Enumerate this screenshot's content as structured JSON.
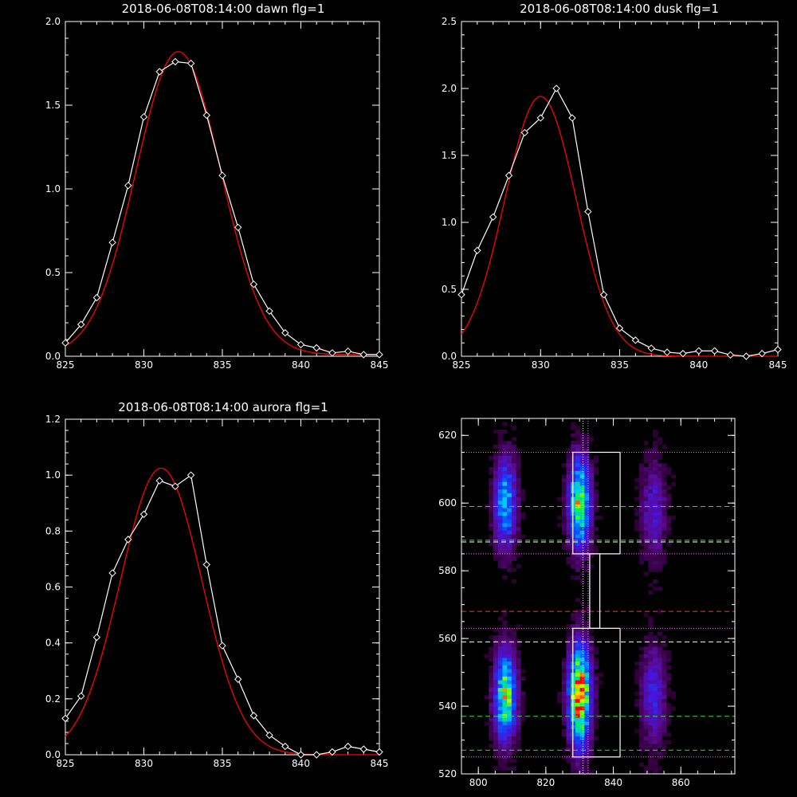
{
  "chart_data": [
    {
      "type": "line",
      "title": "2018-06-08T08:14:00 dawn flg=1",
      "xlim": [
        825,
        845
      ],
      "ylim": [
        0,
        2.0
      ],
      "xticks": [
        825,
        830,
        835,
        840,
        845
      ],
      "yticks": [
        0,
        0.5,
        1.0,
        1.5,
        2.0
      ],
      "ytick_labels": [
        "0.0",
        "0.5",
        "1.0",
        "1.5",
        "2.0"
      ],
      "series": [
        {
          "style": "data-diamonds",
          "color": "#ffffff",
          "x": [
            825,
            826,
            827,
            828,
            829,
            830,
            831,
            832,
            833,
            834,
            835,
            836,
            837,
            838,
            839,
            840,
            841,
            842,
            843,
            844,
            845
          ],
          "y": [
            0.08,
            0.19,
            0.35,
            0.68,
            1.02,
            1.43,
            1.7,
            1.76,
            1.75,
            1.44,
            1.08,
            0.77,
            0.43,
            0.27,
            0.14,
            0.07,
            0.05,
            0.02,
            0.03,
            0.01,
            0.01
          ]
        },
        {
          "style": "fit",
          "color": "#ff0000",
          "amplitude": 1.81,
          "center": 832.2,
          "sigma": 2.7,
          "offset": 0.01
        }
      ]
    },
    {
      "type": "line",
      "title": "2018-06-08T08:14:00 dusk flg=1",
      "xlim": [
        825,
        845
      ],
      "ylim": [
        0,
        2.5
      ],
      "xticks": [
        825,
        830,
        835,
        840,
        845
      ],
      "yticks": [
        0,
        0.5,
        1.0,
        1.5,
        2.0,
        2.5
      ],
      "ytick_labels": [
        "0.0",
        "0.5",
        "1.0",
        "1.5",
        "2.0",
        "2.5"
      ],
      "series": [
        {
          "style": "data-diamonds",
          "color": "#ffffff",
          "x": [
            825,
            826,
            827,
            828,
            829,
            830,
            831,
            832,
            833,
            834,
            835,
            836,
            837,
            838,
            839,
            840,
            841,
            842,
            843,
            844,
            845
          ],
          "y": [
            0.46,
            0.79,
            1.04,
            1.35,
            1.67,
            1.78,
            2.0,
            1.78,
            1.08,
            0.46,
            0.21,
            0.12,
            0.06,
            0.03,
            0.02,
            0.04,
            0.04,
            0.01,
            0.0,
            0.02,
            0.05
          ]
        },
        {
          "style": "fit",
          "color": "#ff0000",
          "amplitude": 1.94,
          "center": 830.0,
          "sigma": 2.25,
          "offset": 0.0
        }
      ]
    },
    {
      "type": "line",
      "title": "2018-06-08T08:14:00 aurora flg=1",
      "xlim": [
        825,
        845
      ],
      "ylim": [
        0,
        1.2
      ],
      "xticks": [
        825,
        830,
        835,
        840,
        845
      ],
      "yticks": [
        0,
        0.2,
        0.4,
        0.6,
        0.8,
        1.0,
        1.2
      ],
      "ytick_labels": [
        "0.0",
        "0.2",
        "0.4",
        "0.6",
        "0.8",
        "1.0",
        "1.2"
      ],
      "series": [
        {
          "style": "data-diamonds",
          "color": "#ffffff",
          "x": [
            825,
            826,
            827,
            828,
            829,
            830,
            831,
            832,
            833,
            834,
            835,
            836,
            837,
            838,
            839,
            840,
            841,
            842,
            843,
            844,
            845
          ],
          "y": [
            0.13,
            0.21,
            0.42,
            0.65,
            0.77,
            0.86,
            0.98,
            0.96,
            1.0,
            0.68,
            0.39,
            0.27,
            0.14,
            0.07,
            0.03,
            0.0,
            0.0,
            0.01,
            0.03,
            0.02,
            0.01
          ]
        },
        {
          "style": "fit",
          "color": "#ff0000",
          "amplitude": 1.025,
          "center": 831.1,
          "sigma": 2.6,
          "offset": 0.0
        }
      ]
    },
    {
      "type": "heatmap",
      "xlim": [
        795,
        876
      ],
      "ylim": [
        520,
        625
      ],
      "xticks": [
        800,
        820,
        840,
        860
      ],
      "yticks": [
        520,
        540,
        560,
        580,
        600,
        620
      ],
      "blobs": [
        {
          "x": 808,
          "y": 600,
          "sx": 2.2,
          "sy": 9,
          "amp": 0.55
        },
        {
          "x": 830,
          "y": 600,
          "sx": 2.2,
          "sy": 9,
          "amp": 0.75
        },
        {
          "x": 852,
          "y": 598,
          "sx": 2.5,
          "sy": 10,
          "amp": 0.25
        },
        {
          "x": 808,
          "y": 543,
          "sx": 2.2,
          "sy": 9,
          "amp": 0.75
        },
        {
          "x": 830,
          "y": 543,
          "sx": 2.2,
          "sy": 10,
          "amp": 1.0
        },
        {
          "x": 852,
          "y": 543,
          "sx": 2.5,
          "sy": 10,
          "amp": 0.3
        }
      ],
      "boxes": [
        {
          "x0": 828,
          "x1": 842,
          "y0": 585,
          "y1": 615
        },
        {
          "x0": 833,
          "x1": 836,
          "y0": 563,
          "y1": 585
        },
        {
          "x0": 828,
          "x1": 842,
          "y0": 525,
          "y1": 563
        }
      ],
      "hlines": [
        {
          "y": 615,
          "style": "dotted",
          "color": "#ff66ff"
        },
        {
          "y": 599,
          "style": "dashed",
          "color": "#33dd33"
        },
        {
          "y": 589,
          "style": "dashed",
          "color": "#33dd33"
        },
        {
          "y": 588.5,
          "style": "dashed",
          "color": "#ffffff"
        },
        {
          "y": 585,
          "style": "dotted",
          "color": "#ff66ff"
        },
        {
          "y": 568,
          "style": "dashed",
          "color": "#ff3333"
        },
        {
          "y": 563,
          "style": "dotted",
          "color": "#ff66ff"
        },
        {
          "y": 559,
          "style": "dashed",
          "color": "#ffffff"
        },
        {
          "y": 537,
          "style": "dashed",
          "color": "#33dd33"
        },
        {
          "y": 527,
          "style": "dashed",
          "color": "#33dd33"
        },
        {
          "y": 525,
          "style": "dotted",
          "color": "#ff66ff"
        }
      ],
      "vlines": [
        {
          "x": 831,
          "style": "dotted",
          "color": "#ffffff"
        },
        {
          "x": 832.5,
          "style": "dotted",
          "color": "#ff66ff"
        }
      ]
    }
  ]
}
